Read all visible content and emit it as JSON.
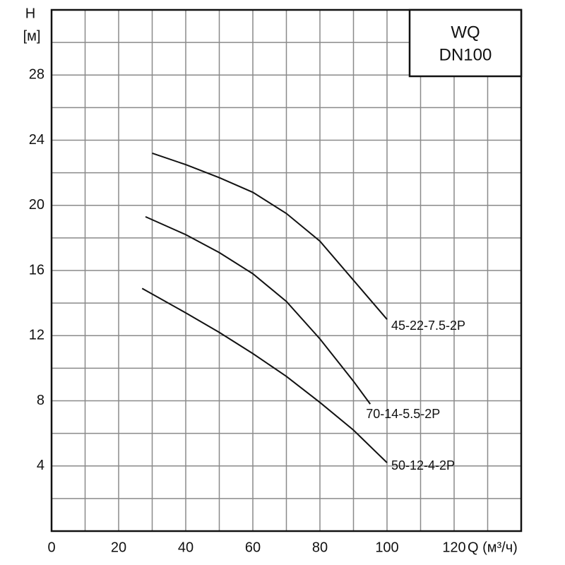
{
  "chart_data": {
    "type": "line",
    "title": "WQ",
    "subtitle": "DN100",
    "ylabel": "H",
    "yunit": "[м]",
    "xlabel": "Q (м³/ч)",
    "xlim": [
      0,
      140
    ],
    "xticks": [
      0,
      20,
      40,
      60,
      80,
      100,
      120
    ],
    "ylim": [
      0,
      32
    ],
    "yticks": [
      4,
      8,
      12,
      16,
      20,
      24,
      28
    ],
    "grid": true,
    "series": [
      {
        "name": "45-22-7.5-2P",
        "color": "#111111",
        "x": [
          30,
          40,
          50,
          60,
          70,
          80,
          90,
          100
        ],
        "values": [
          23.2,
          22.5,
          21.7,
          20.8,
          19.5,
          17.8,
          15.4,
          13.0
        ]
      },
      {
        "name": "70-14-5.5-2P",
        "color": "#111111",
        "x": [
          28,
          40,
          50,
          60,
          70,
          80,
          90,
          95
        ],
        "values": [
          19.3,
          18.2,
          17.1,
          15.8,
          14.1,
          11.8,
          9.2,
          7.8
        ]
      },
      {
        "name": "50-12-4-2P",
        "color": "#111111",
        "x": [
          27,
          40,
          50,
          60,
          70,
          80,
          90,
          100
        ],
        "values": [
          14.9,
          13.4,
          12.2,
          10.9,
          9.5,
          7.9,
          6.2,
          4.2
        ]
      }
    ]
  }
}
